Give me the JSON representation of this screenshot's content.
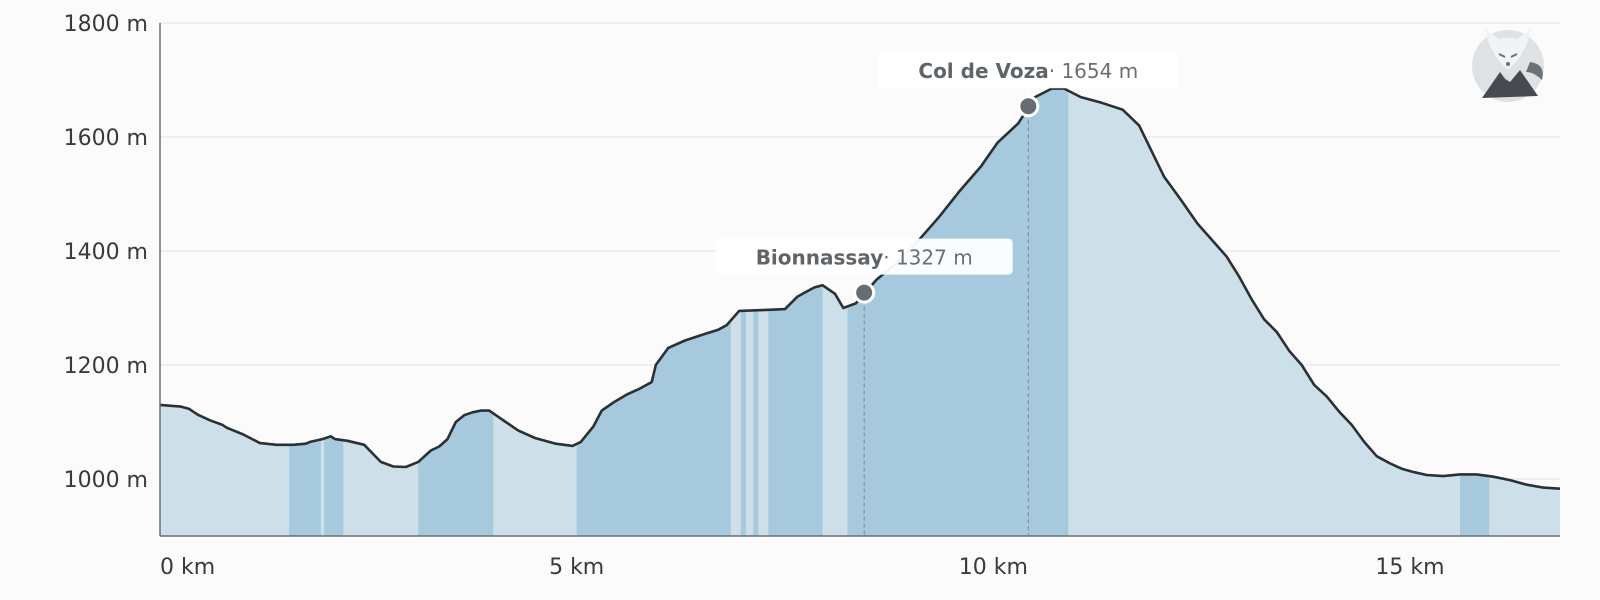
{
  "chart_data": {
    "type": "area",
    "title": "",
    "xlabel": "",
    "ylabel": "",
    "x_unit": "km",
    "y_unit": "m",
    "xlim": [
      0,
      16.8
    ],
    "ylim": [
      900,
      1800
    ],
    "grid": true,
    "x_ticks": [
      {
        "value": 0,
        "label": "0 km"
      },
      {
        "value": 5,
        "label": "5 km"
      },
      {
        "value": 10,
        "label": "10 km"
      },
      {
        "value": 15,
        "label": "15 km"
      }
    ],
    "y_ticks": [
      {
        "value": 1000,
        "label": "1000 m"
      },
      {
        "value": 1200,
        "label": "1200 m"
      },
      {
        "value": 1400,
        "label": "1400 m"
      },
      {
        "value": 1600,
        "label": "1600 m"
      },
      {
        "value": 1800,
        "label": "1800 m"
      }
    ],
    "series": [
      {
        "x": [
          0,
          0.25,
          0.35,
          0.45,
          0.6,
          0.75,
          0.8,
          1.0,
          1.2,
          1.4,
          1.6,
          1.75,
          1.8,
          1.95,
          2.05,
          2.1,
          2.25,
          2.45,
          2.65,
          2.8,
          2.95,
          3.1,
          3.25,
          3.35,
          3.45,
          3.55,
          3.65,
          3.75,
          3.85,
          3.95,
          4.05,
          4.15,
          4.3,
          4.5,
          4.75,
          4.95,
          5.05,
          5.2,
          5.3,
          5.45,
          5.6,
          5.75,
          5.9,
          5.95,
          6.1,
          6.3,
          6.55,
          6.7,
          6.8,
          6.95,
          7.15,
          7.35,
          7.5,
          7.65,
          7.75,
          7.85,
          7.95,
          8.1,
          8.2,
          8.35,
          8.6,
          8.85,
          9.1,
          9.35,
          9.6,
          9.85,
          10.05,
          10.3,
          10.5,
          10.7,
          10.85,
          11.05,
          11.3,
          11.55,
          11.75,
          11.9,
          12.05,
          12.25,
          12.45,
          12.65,
          12.8,
          12.95,
          13.1,
          13.25,
          13.4,
          13.55,
          13.7,
          13.85,
          14.0,
          14.15,
          14.3,
          14.45,
          14.6,
          14.75,
          14.9,
          15.05,
          15.2,
          15.4,
          15.6,
          15.8,
          16.0,
          16.2,
          16.4,
          16.6,
          16.8
        ],
        "y": [
          1130,
          1127,
          1123,
          1113,
          1103,
          1095,
          1090,
          1078,
          1063,
          1060,
          1060,
          1062,
          1065,
          1070,
          1075,
          1070,
          1067,
          1060,
          1030,
          1022,
          1021,
          1030,
          1050,
          1057,
          1070,
          1100,
          1112,
          1117,
          1120,
          1120,
          1110,
          1100,
          1085,
          1072,
          1062,
          1058,
          1065,
          1092,
          1120,
          1135,
          1148,
          1158,
          1170,
          1200,
          1230,
          1243,
          1255,
          1262,
          1270,
          1295,
          1296,
          1297,
          1298,
          1320,
          1328,
          1336,
          1340,
          1325,
          1300,
          1308,
          1350,
          1380,
          1418,
          1460,
          1506,
          1548,
          1590,
          1624,
          1670,
          1685,
          1685,
          1670,
          1660,
          1648,
          1620,
          1575,
          1530,
          1490,
          1448,
          1415,
          1390,
          1355,
          1315,
          1280,
          1258,
          1225,
          1200,
          1165,
          1145,
          1118,
          1095,
          1065,
          1040,
          1028,
          1018,
          1012,
          1007,
          1005,
          1008,
          1008,
          1004,
          998,
          990,
          985,
          983
        ]
      }
    ],
    "highlight_bands": [
      {
        "from": 1.55,
        "to": 1.93
      },
      {
        "from": 1.97,
        "to": 2.2
      },
      {
        "from": 3.1,
        "to": 4.0
      },
      {
        "from": 5.0,
        "to": 6.85
      },
      {
        "from": 6.97,
        "to": 7.03
      },
      {
        "from": 7.12,
        "to": 7.18
      },
      {
        "from": 7.3,
        "to": 7.95
      },
      {
        "from": 8.25,
        "to": 10.9
      },
      {
        "from": 15.6,
        "to": 15.95
      }
    ],
    "waypoints": [
      {
        "name": "Bionnassay",
        "elevation_label": "· 1327 m",
        "x": 8.45,
        "y": 1327
      },
      {
        "name": "Col de Voza",
        "elevation_label": "· 1654 m",
        "x": 10.42,
        "y": 1654
      }
    ],
    "colors": {
      "fill": "#cde0ea",
      "band": "#a7c9dd",
      "line": "#2b3033",
      "grid": "#e2e4e6",
      "axis": "#6b6f73",
      "marker": "#666d72"
    }
  },
  "logo": {
    "icon": "fox-mountain-icon"
  }
}
